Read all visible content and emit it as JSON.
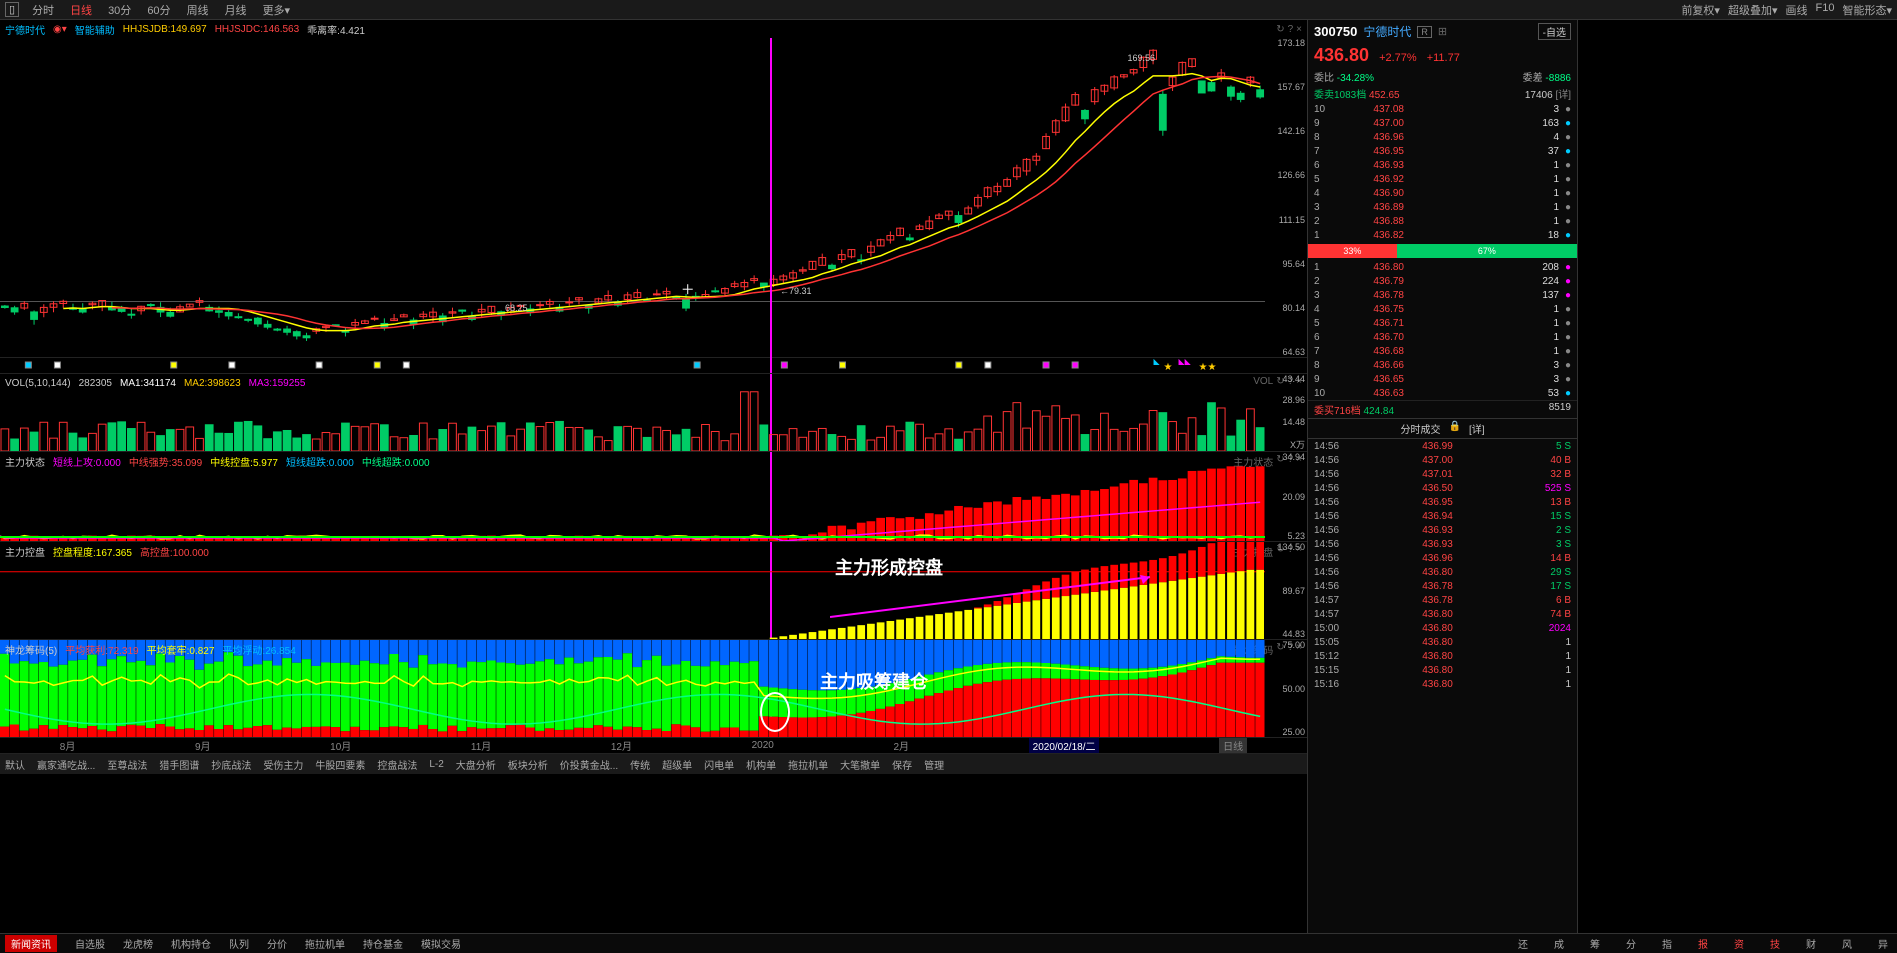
{
  "topTabs": [
    "分时",
    "日线",
    "30分",
    "60分",
    "周线",
    "月线",
    "更多▾"
  ],
  "topActive": 1,
  "topRight": [
    "前复权▾",
    "超级叠加▾",
    "画线",
    "F10",
    "智能形态▾"
  ],
  "stockInfo": {
    "name": "宁德时代",
    "smart": "智能辅助",
    "ind1": "HHJSJDB:149.697",
    "ind1c": "#ffcc00",
    "ind2": "HHJSJDC:146.563",
    "ind2c": "#ff4444",
    "ind3": "乖离率:4.421",
    "ind3c": "#ccc"
  },
  "priceAxis": [
    "173.18",
    "157.67",
    "142.16",
    "126.66",
    "111.15",
    "95.64",
    "80.14",
    "64.63"
  ],
  "priceHigh": "169.56",
  "priceLow": "68.25",
  "priceMark": "79.31",
  "vol": {
    "header": [
      "VOL(5,10,144)",
      "282305",
      "MA1:341174",
      "MA2:398623",
      "MA3:159255"
    ],
    "colors": [
      "#ccc",
      "#ccc",
      "#fff",
      "#ffcc00",
      "#ff00ff"
    ],
    "axis": [
      "43.44",
      "28.96",
      "14.48",
      "X万"
    ],
    "label": "VOL"
  },
  "zlzt": {
    "header": [
      "主力状态",
      "短线上攻:0.000",
      "中线强势:35.099",
      "中线控盘:5.977",
      "短线超跌:0.000",
      "中线超跌:0.000"
    ],
    "colors": [
      "#ccc",
      "#ff00ff",
      "#ff4444",
      "#ffff00",
      "#00bfff",
      "#00ff88"
    ],
    "axis": [
      "34.94",
      "20.09",
      "5.23"
    ],
    "label": "主力状态",
    "annotation": "主力形成控盘"
  },
  "zlkp": {
    "header": [
      "主力控盘",
      "控盘程度:167.365",
      "高控盘:100.000"
    ],
    "colors": [
      "#ccc",
      "#ffff00",
      "#ff4444"
    ],
    "axis": [
      "134.50",
      "89.67",
      "44.83"
    ],
    "label": "主力控盘"
  },
  "slcm": {
    "header": [
      "神龙筹码(5)",
      "平均获利:72.319",
      "平均套牢:0.827",
      "平均浮动:26.854"
    ],
    "colors": [
      "#ccc",
      "#ff4444",
      "#ffff00",
      "#00bfff"
    ],
    "axis": [
      "75.00",
      "50.00",
      "25.00"
    ],
    "label": "神龙筹码",
    "annotation": "主力吸筹建仓"
  },
  "timeAxis": [
    "8月",
    "9月",
    "10月",
    "11月",
    "12月",
    "2020",
    "2月"
  ],
  "dateLabel": "2020/02/18/二",
  "dateTab": "日线",
  "bottomTabs": [
    "默认",
    "赢家通吃战...",
    "至尊战法",
    "猎手图谱",
    "抄底战法",
    "受伤主力",
    "牛股四要素",
    "控盘战法",
    "L-2",
    "大盘分析",
    "板块分析",
    "价投黄金战...",
    "传统",
    "超级单",
    "闪电单",
    "机构单",
    "拖拉机单",
    "大笔撤单",
    "保存",
    "管理"
  ],
  "footerTabs": [
    "新闻资讯",
    "自选股",
    "龙虎榜",
    "机构持仓",
    "队列",
    "分价",
    "拖拉机单",
    "持仓基金",
    "模拟交易"
  ],
  "footerRight": [
    "还",
    "成",
    "筹",
    "分",
    "指",
    "报",
    "资",
    "技",
    "财",
    "风",
    "异"
  ],
  "side": {
    "code": "300750",
    "name": "宁德时代",
    "badge": "R",
    "opt": "-自选",
    "price": "436.80",
    "chgPct": "+2.77%",
    "chgVal": "+11.77",
    "wb": "委比",
    "wbv": "-34.28%",
    "wc": "委差",
    "wcv": "-8886",
    "wm": "委卖1083档",
    "wmp": "452.65",
    "wmv": "17406",
    "detail": "[详]",
    "asks": [
      {
        "l": "10",
        "p": "437.08",
        "v": "3",
        "c": "#888"
      },
      {
        "l": "9",
        "p": "437.00",
        "v": "163",
        "c": "#0cf"
      },
      {
        "l": "8",
        "p": "436.96",
        "v": "4",
        "c": "#888"
      },
      {
        "l": "7",
        "p": "436.95",
        "v": "37",
        "c": "#0cf"
      },
      {
        "l": "6",
        "p": "436.93",
        "v": "1",
        "c": "#888"
      },
      {
        "l": "5",
        "p": "436.92",
        "v": "1",
        "c": "#888"
      },
      {
        "l": "4",
        "p": "436.90",
        "v": "1",
        "c": "#888"
      },
      {
        "l": "3",
        "p": "436.89",
        "v": "1",
        "c": "#888"
      },
      {
        "l": "2",
        "p": "436.88",
        "v": "1",
        "c": "#888"
      },
      {
        "l": "1",
        "p": "436.82",
        "v": "18",
        "c": "#0cf"
      }
    ],
    "ratioR": "33%",
    "ratioG": "67%",
    "bids": [
      {
        "l": "1",
        "p": "436.80",
        "v": "208",
        "c": "#f0f"
      },
      {
        "l": "2",
        "p": "436.79",
        "v": "224",
        "c": "#f0f"
      },
      {
        "l": "3",
        "p": "436.78",
        "v": "137",
        "c": "#f0f"
      },
      {
        "l": "4",
        "p": "436.75",
        "v": "1",
        "c": "#888"
      },
      {
        "l": "5",
        "p": "436.71",
        "v": "1",
        "c": "#888"
      },
      {
        "l": "6",
        "p": "436.70",
        "v": "1",
        "c": "#888"
      },
      {
        "l": "7",
        "p": "436.68",
        "v": "1",
        "c": "#888"
      },
      {
        "l": "8",
        "p": "436.66",
        "v": "3",
        "c": "#888"
      },
      {
        "l": "9",
        "p": "436.65",
        "v": "3",
        "c": "#888"
      },
      {
        "l": "10",
        "p": "436.63",
        "v": "53",
        "c": "#0cf"
      }
    ],
    "wb2": "委买716档",
    "wb2p": "424.84",
    "wb2v": "8519",
    "tradeTitle": "分时成交",
    "lock": "🔒",
    "detail2": "[详]",
    "trades": [
      {
        "t": "14:56",
        "p": "436.99",
        "pc": "#ff4444",
        "v": "5",
        "vc": "#00cc66",
        "s": "S"
      },
      {
        "t": "14:56",
        "p": "437.00",
        "pc": "#ff4444",
        "v": "40",
        "vc": "#ff4444",
        "s": "B"
      },
      {
        "t": "14:56",
        "p": "437.01",
        "pc": "#ff4444",
        "v": "32",
        "vc": "#ff4444",
        "s": "B"
      },
      {
        "t": "14:56",
        "p": "436.50",
        "pc": "#ff4444",
        "v": "525",
        "vc": "#f0f",
        "s": "S"
      },
      {
        "t": "14:56",
        "p": "436.95",
        "pc": "#ff4444",
        "v": "13",
        "vc": "#ff4444",
        "s": "B"
      },
      {
        "t": "14:56",
        "p": "436.94",
        "pc": "#ff4444",
        "v": "15",
        "vc": "#00cc66",
        "s": "S"
      },
      {
        "t": "14:56",
        "p": "436.93",
        "pc": "#ff4444",
        "v": "2",
        "vc": "#00cc66",
        "s": "S"
      },
      {
        "t": "14:56",
        "p": "436.93",
        "pc": "#ff4444",
        "v": "3",
        "vc": "#00cc66",
        "s": "S"
      },
      {
        "t": "14:56",
        "p": "436.96",
        "pc": "#ff4444",
        "v": "14",
        "vc": "#ff4444",
        "s": "B"
      },
      {
        "t": "14:56",
        "p": "436.80",
        "pc": "#ff4444",
        "v": "29",
        "vc": "#00cc66",
        "s": "S"
      },
      {
        "t": "14:56",
        "p": "436.78",
        "pc": "#ff4444",
        "v": "17",
        "vc": "#00cc66",
        "s": "S"
      },
      {
        "t": "14:57",
        "p": "436.78",
        "pc": "#ff4444",
        "v": "6",
        "vc": "#ff4444",
        "s": "B"
      },
      {
        "t": "14:57",
        "p": "436.80",
        "pc": "#ff4444",
        "v": "74",
        "vc": "#ff4444",
        "s": "B"
      },
      {
        "t": "15:00",
        "p": "436.80",
        "pc": "#ff4444",
        "v": "2024",
        "vc": "#f0f",
        "s": ""
      },
      {
        "t": "15:05",
        "p": "436.80",
        "pc": "#ff4444",
        "v": "1",
        "vc": "#ccc",
        "s": ""
      },
      {
        "t": "15:12",
        "p": "436.80",
        "pc": "#ff4444",
        "v": "1",
        "vc": "#ccc",
        "s": ""
      },
      {
        "t": "15:15",
        "p": "436.80",
        "pc": "#ff4444",
        "v": "1",
        "vc": "#ccc",
        "s": ""
      },
      {
        "t": "15:16",
        "p": "436.80",
        "pc": "#ff4444",
        "v": "1",
        "vc": "#ccc",
        "s": ""
      }
    ],
    "candles": {
      "n": 130,
      "base": 78,
      "trend": [
        78,
        77,
        78,
        76,
        77,
        78,
        79,
        78,
        77,
        78,
        79,
        78,
        77,
        76,
        77,
        78,
        77,
        76,
        77,
        78,
        79,
        78,
        77,
        76,
        75,
        74,
        73,
        72,
        71,
        70,
        69,
        68,
        69,
        70,
        71,
        70,
        71,
        72,
        73,
        72,
        73,
        74,
        73,
        74,
        75,
        74,
        75,
        76,
        75,
        76,
        77,
        76,
        77,
        78,
        77,
        78,
        79,
        78,
        79,
        80,
        79,
        80,
        81,
        80,
        81,
        82,
        81,
        82,
        83,
        82,
        80,
        81,
        82,
        83,
        84,
        85,
        86,
        87,
        86,
        87,
        88,
        89,
        90,
        92,
        94,
        93,
        95,
        97,
        96,
        98,
        100,
        102,
        104,
        103,
        105,
        107,
        109,
        111,
        110,
        112,
        115,
        118,
        120,
        122,
        125,
        128,
        130,
        135,
        140,
        145,
        150,
        148,
        152,
        155,
        158,
        160,
        162,
        165,
        168,
        155,
        158,
        162,
        165,
        160,
        158,
        160,
        157,
        155,
        158,
        156
      ]
    }
  }
}
